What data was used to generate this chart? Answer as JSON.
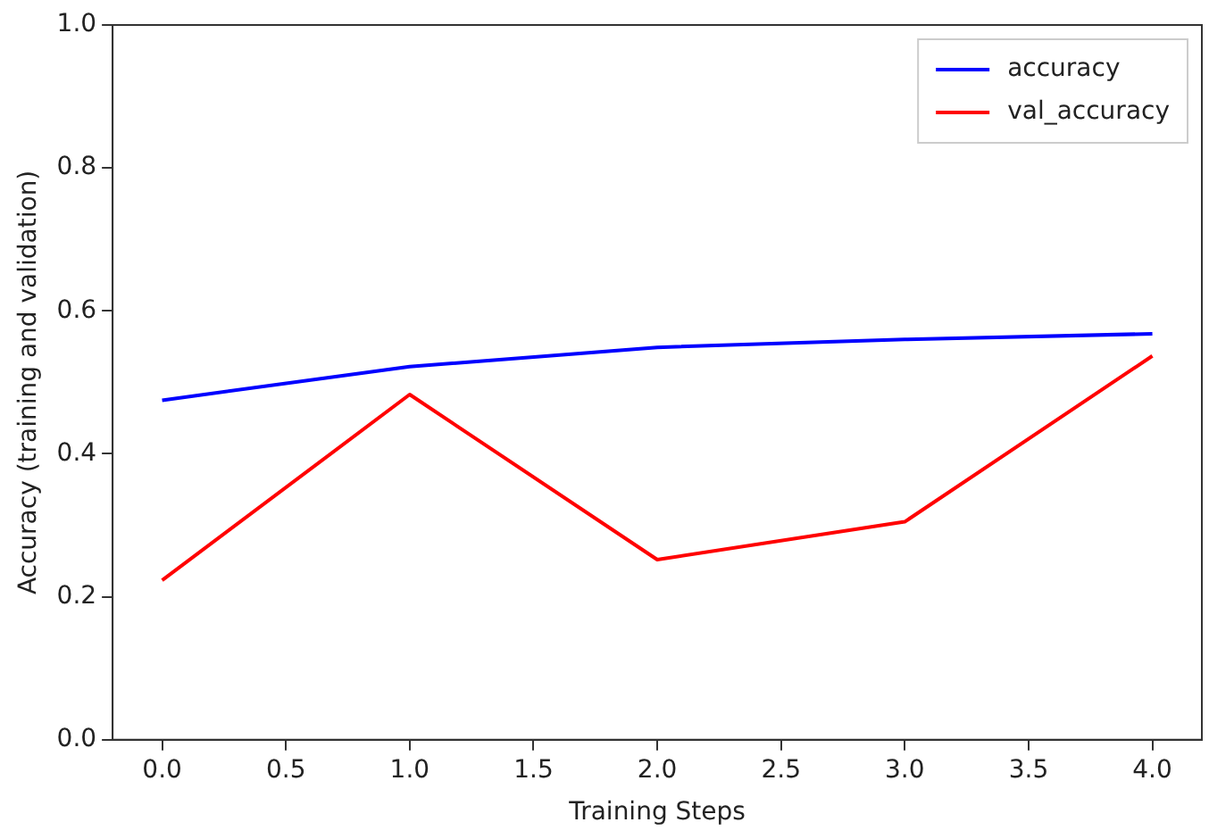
{
  "chart_data": {
    "type": "line",
    "xlabel": "Training Steps",
    "ylabel": "Accuracy (training and validation)",
    "x": [
      0,
      1,
      2,
      3,
      4
    ],
    "series": [
      {
        "name": "accuracy",
        "color": "#0000ff",
        "values": [
          0.475,
          0.522,
          0.549,
          0.56,
          0.568
        ]
      },
      {
        "name": "val_accuracy",
        "color": "#ff0000",
        "values": [
          0.223,
          0.483,
          0.252,
          0.305,
          0.537
        ]
      }
    ],
    "xlim": [
      -0.2,
      4.2
    ],
    "xticks": [
      {
        "value": 0,
        "label": "0.0"
      },
      {
        "value": 0.5,
        "label": "0.5"
      },
      {
        "value": 1,
        "label": "1.0"
      },
      {
        "value": 1.5,
        "label": "1.5"
      },
      {
        "value": 2,
        "label": "2.0"
      },
      {
        "value": 2.5,
        "label": "2.5"
      },
      {
        "value": 3,
        "label": "3.0"
      },
      {
        "value": 3.5,
        "label": "3.5"
      },
      {
        "value": 4,
        "label": "4.0"
      }
    ],
    "ylim": [
      0,
      1
    ],
    "yticks": [
      {
        "value": 0,
        "label": "0.0"
      },
      {
        "value": 0.2,
        "label": "0.2"
      },
      {
        "value": 0.4,
        "label": "0.4"
      },
      {
        "value": 0.6,
        "label": "0.6"
      },
      {
        "value": 0.8,
        "label": "0.8"
      },
      {
        "value": 1,
        "label": "1.0"
      }
    ],
    "grid": false,
    "legend": "top right",
    "marker": "none",
    "line_style": "solid"
  }
}
